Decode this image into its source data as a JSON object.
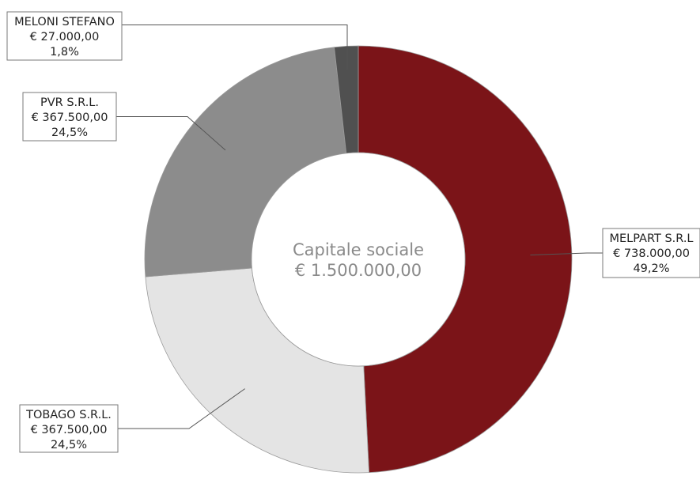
{
  "chart_data": {
    "type": "pie",
    "variant": "donut",
    "center_label": {
      "line1": "Capitale sociale",
      "line2": "€ 1.500.000,00"
    },
    "total": 1500000,
    "slices": [
      {
        "label": "MELPART S.R.L",
        "amount": "€ 738.000,00",
        "percent": "49,2%",
        "value": 738000,
        "color": "#7b1418"
      },
      {
        "label": "TOBAGO S.R.L.",
        "amount": "€ 367.500,00",
        "percent": "24,5%",
        "value": 367500,
        "color": "#e4e4e4"
      },
      {
        "label": "PVR S.R.L.",
        "amount": "€ 367.500,00",
        "percent": "24,5%",
        "value": 367500,
        "color": "#8c8c8c"
      },
      {
        "label": "MELONI STEFANO",
        "amount": "€ 27.000,00",
        "percent": "1,8%",
        "value": 27000,
        "color": "#505050"
      }
    ]
  }
}
